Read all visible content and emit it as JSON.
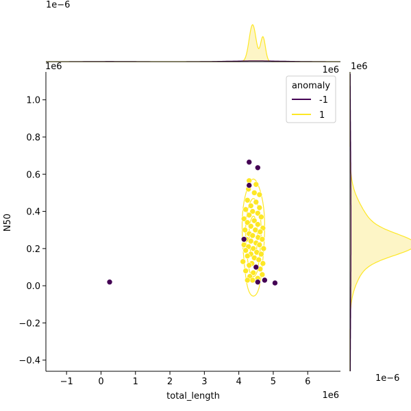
{
  "chart_data": {
    "type": "scatter",
    "kind": "jointplot-scatter-kde",
    "xlabel": "total_length",
    "ylabel": "N50",
    "x_scale_label": "1e6",
    "y_scale_label": "1e6",
    "x_range": [
      -1.6,
      6.95
    ],
    "y_range": [
      -0.46,
      1.15
    ],
    "x_ticks": [
      -1,
      0,
      1,
      2,
      3,
      4,
      5,
      6
    ],
    "x_tick_labels": [
      "−1",
      "0",
      "1",
      "2",
      "3",
      "4",
      "5",
      "6"
    ],
    "y_ticks": [
      -0.4,
      -0.2,
      0.0,
      0.2,
      0.4,
      0.6,
      0.8,
      1.0
    ],
    "y_tick_labels": [
      "−0.4",
      "−0.2",
      "0.0",
      "0.2",
      "0.4",
      "0.6",
      "0.8",
      "1.0"
    ],
    "top_marginal_scale_label": "1e−6",
    "top_marginal_right_label": "1e6",
    "right_marginal_top_label": "1e6",
    "right_marginal_scale_label": "1e−6",
    "legend": {
      "title": "anomaly",
      "position": "top-right",
      "entries": [
        {
          "label": "-1",
          "color": "#440154"
        },
        {
          "label": "1",
          "color": "#fde725"
        }
      ]
    },
    "colors": {
      "anomaly": "#440154",
      "normal": "#fde725",
      "fill": "#fdf5c6"
    },
    "series": [
      {
        "name": "-1",
        "points": [
          [
            0.25,
            0.02
          ],
          [
            4.3,
            0.665
          ],
          [
            4.55,
            0.635
          ],
          [
            4.3,
            0.54
          ],
          [
            4.15,
            0.25
          ],
          [
            4.5,
            0.1
          ],
          [
            4.75,
            0.03
          ],
          [
            4.55,
            0.02
          ],
          [
            5.05,
            0.015
          ]
        ]
      },
      {
        "name": "1",
        "points": [
          [
            4.3,
            0.565
          ],
          [
            4.5,
            0.545
          ],
          [
            4.28,
            0.52
          ],
          [
            4.45,
            0.5
          ],
          [
            4.6,
            0.49
          ],
          [
            4.25,
            0.46
          ],
          [
            4.5,
            0.45
          ],
          [
            4.35,
            0.43
          ],
          [
            4.6,
            0.42
          ],
          [
            4.2,
            0.41
          ],
          [
            4.4,
            0.4
          ],
          [
            4.55,
            0.39
          ],
          [
            4.3,
            0.38
          ],
          [
            4.65,
            0.37
          ],
          [
            4.15,
            0.36
          ],
          [
            4.45,
            0.35
          ],
          [
            4.25,
            0.34
          ],
          [
            4.55,
            0.33
          ],
          [
            4.35,
            0.32
          ],
          [
            4.7,
            0.31
          ],
          [
            4.18,
            0.3
          ],
          [
            4.48,
            0.3
          ],
          [
            4.62,
            0.29
          ],
          [
            4.3,
            0.28
          ],
          [
            4.4,
            0.27
          ],
          [
            4.56,
            0.26
          ],
          [
            4.22,
            0.25
          ],
          [
            4.68,
            0.25
          ],
          [
            4.35,
            0.24
          ],
          [
            4.5,
            0.23
          ],
          [
            4.15,
            0.22
          ],
          [
            4.6,
            0.22
          ],
          [
            4.28,
            0.21
          ],
          [
            4.42,
            0.2
          ],
          [
            4.72,
            0.2
          ],
          [
            4.2,
            0.19
          ],
          [
            4.52,
            0.18
          ],
          [
            4.35,
            0.17
          ],
          [
            4.65,
            0.17
          ],
          [
            4.25,
            0.16
          ],
          [
            4.45,
            0.15
          ],
          [
            4.58,
            0.14
          ],
          [
            4.12,
            0.13
          ],
          [
            4.38,
            0.12
          ],
          [
            4.7,
            0.12
          ],
          [
            4.3,
            0.11
          ],
          [
            4.5,
            0.1
          ],
          [
            4.62,
            0.09
          ],
          [
            4.2,
            0.08
          ],
          [
            4.42,
            0.07
          ],
          [
            4.68,
            0.06
          ],
          [
            4.32,
            0.05
          ],
          [
            4.55,
            0.04
          ],
          [
            4.4,
            0.03
          ],
          [
            4.25,
            0.03
          ]
        ]
      }
    ]
  }
}
